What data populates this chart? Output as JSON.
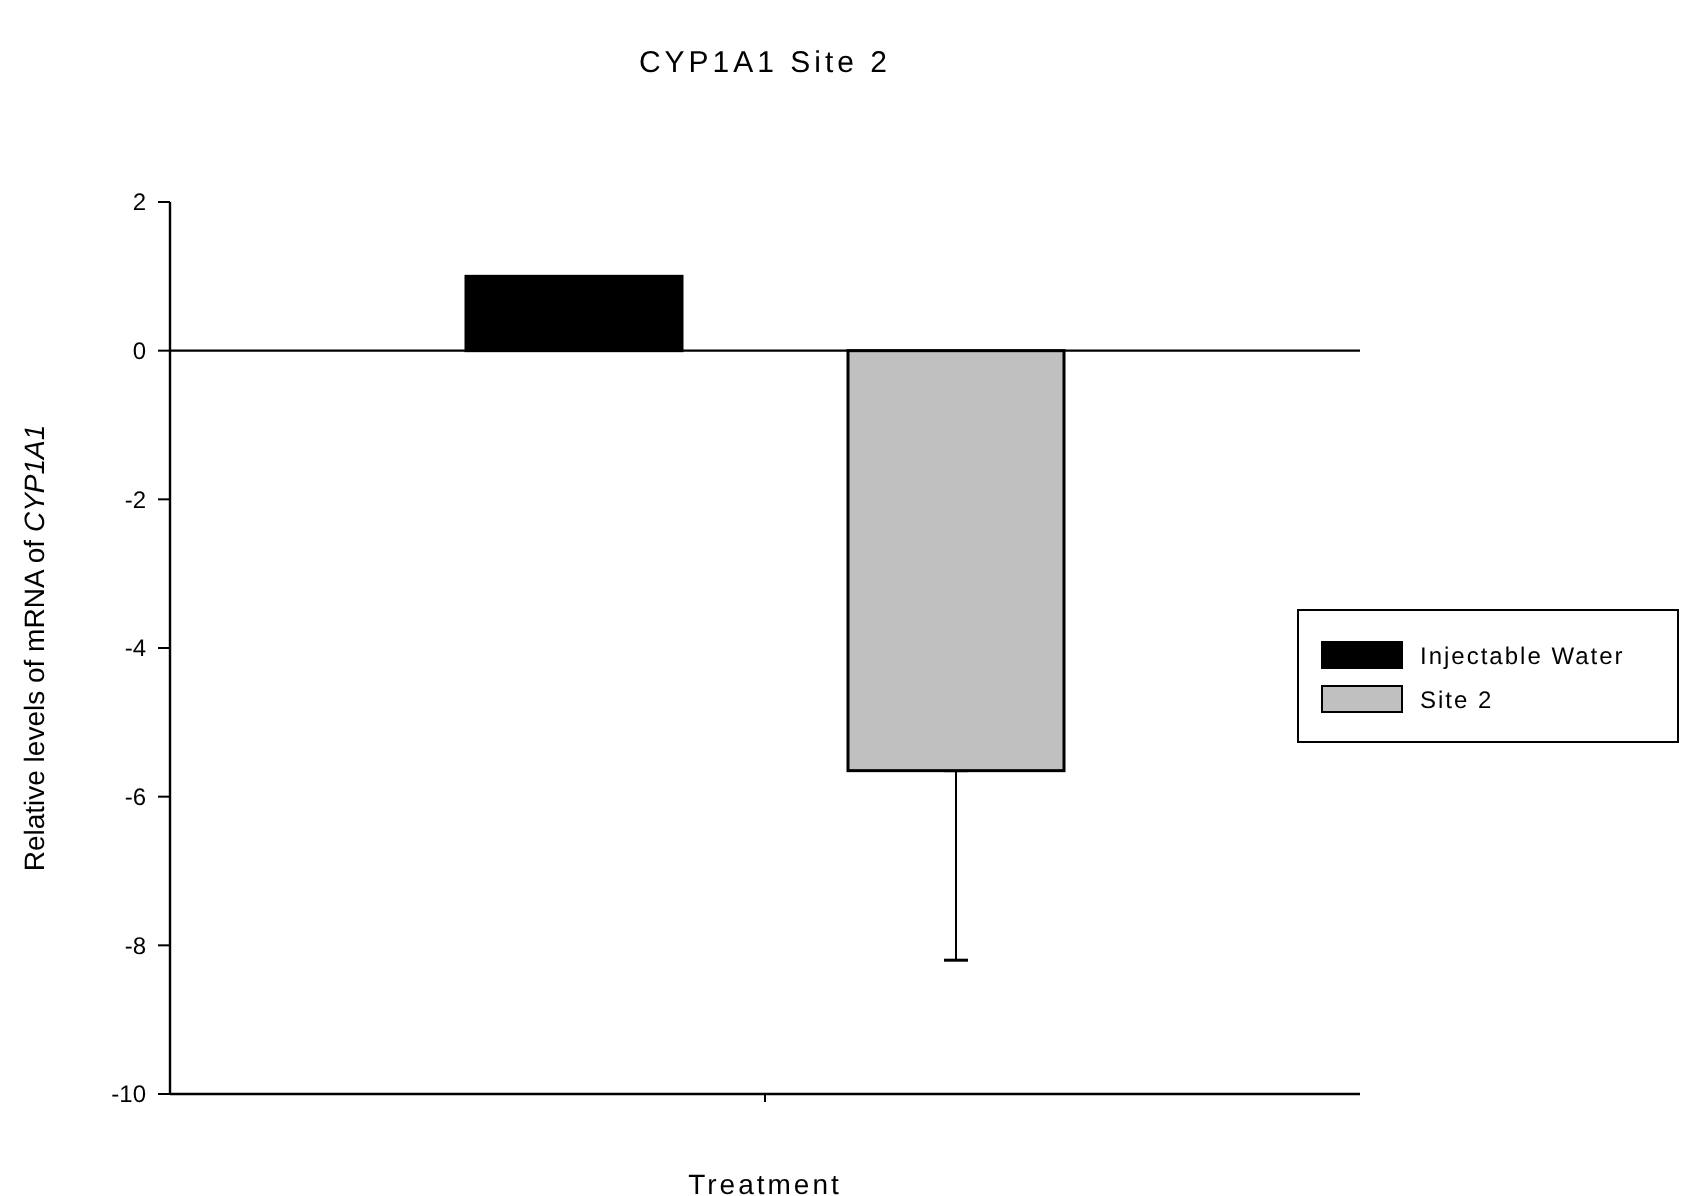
{
  "chart_data": {
    "type": "bar",
    "title": "CYP1A1 Site 2",
    "xlabel": "Treatment",
    "ylabel": "Relative levels of mRNA of CYP1A1",
    "categories": [
      null
    ],
    "series": [
      {
        "name": "Injectable Water",
        "color": "#000000",
        "values": [
          1
        ]
      },
      {
        "name": "Site 2",
        "color": "#c0c0c0",
        "values": [
          -5.65
        ],
        "errors": [
          [
            -8.2,
            -5.65
          ]
        ]
      }
    ],
    "ylim": [
      -10,
      2
    ],
    "yticks": [
      -10,
      -8,
      -6,
      -4,
      -2,
      0,
      2
    ],
    "legend": "right"
  }
}
